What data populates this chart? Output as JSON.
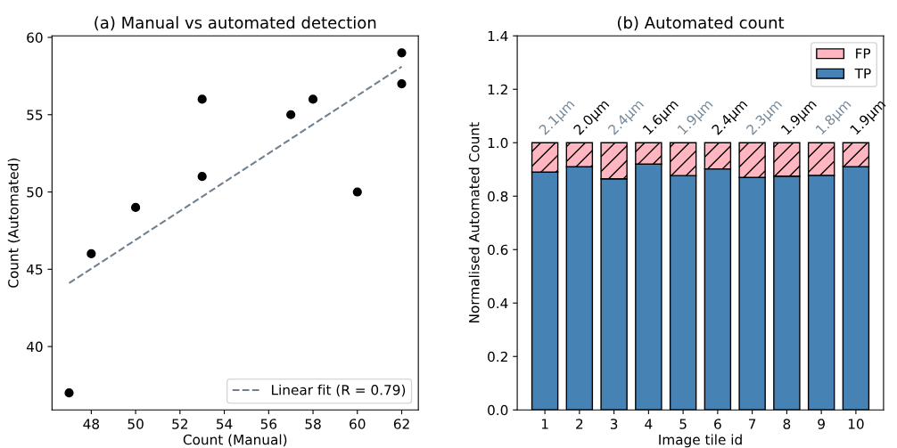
{
  "chart_data": [
    {
      "type": "scatter",
      "title": "(a) Manual vs automated detection",
      "xlabel": "Count (Manual)",
      "ylabel": "Count (Automated)",
      "xlim": [
        46.23,
        62.75
      ],
      "ylim": [
        35.9,
        60.1
      ],
      "xticks": [
        48,
        50,
        52,
        54,
        56,
        58,
        60,
        62
      ],
      "yticks": [
        40,
        45,
        50,
        55,
        60
      ],
      "legend": "bottom right",
      "grid": false,
      "series": [
        {
          "type": "scatter",
          "color": "#000000",
          "marker": "circle",
          "x": [
            47,
            48,
            50,
            53,
            53,
            57,
            58,
            60,
            62,
            62
          ],
          "values": [
            37,
            46,
            49,
            56,
            51,
            55,
            56,
            50,
            59,
            57
          ]
        },
        {
          "type": "line",
          "name": "Linear fit (R = 0.79)",
          "color": "#708090",
          "line_style": "dashed",
          "marker": "none",
          "x": [
            47,
            62
          ],
          "values": [
            44.1,
            58.1
          ]
        }
      ]
    },
    {
      "type": "bar",
      "stacked": true,
      "title": "(b) Automated count",
      "xlabel": "Image tile id",
      "ylabel": "Normalised Automated Count",
      "categories": [
        "1",
        "2",
        "3",
        "4",
        "5",
        "6",
        "7",
        "8",
        "9",
        "10"
      ],
      "ylim": [
        0,
        1.4
      ],
      "yticks": [
        {
          "value": 0,
          "label": "0.0"
        },
        {
          "value": 0.2,
          "label": "0.2"
        },
        {
          "value": 0.4,
          "label": "0.4"
        },
        {
          "value": 0.6,
          "label": "0.6"
        },
        {
          "value": 0.8,
          "label": "0.8"
        },
        {
          "value": 1.0,
          "label": "1.0"
        },
        {
          "value": 1.2,
          "label": "1.2"
        },
        {
          "value": 1.4,
          "label": "1.4"
        }
      ],
      "legend": "top right",
      "grid": false,
      "series": [
        {
          "name": "TP",
          "color": "#4682b4",
          "values": [
            0.89,
            0.91,
            0.865,
            0.92,
            0.877,
            0.902,
            0.87,
            0.875,
            0.878,
            0.91
          ]
        },
        {
          "name": "FP",
          "color": "#ffb6c1",
          "values": [
            0.11,
            0.09,
            0.135,
            0.08,
            0.123,
            0.098,
            0.13,
            0.125,
            0.122,
            0.09
          ]
        }
      ],
      "annotations": [
        {
          "text": "2.1µm",
          "x": "1",
          "y": 1.0
        },
        {
          "text": "2.0µm",
          "x": "2",
          "y": 1.0
        },
        {
          "text": "2.4µm",
          "x": "3",
          "y": 1.0
        },
        {
          "text": "1.6µm",
          "x": "4",
          "y": 1.0
        },
        {
          "text": "1.9µm",
          "x": "5",
          "y": 1.0
        },
        {
          "text": "2.4µm",
          "x": "6",
          "y": 1.0
        },
        {
          "text": "2.3µm",
          "x": "7",
          "y": 1.0
        },
        {
          "text": "1.9µm",
          "x": "8",
          "y": 1.0
        },
        {
          "text": "1.8µm",
          "x": "9",
          "y": 1.0
        },
        {
          "text": "1.9µm",
          "x": "10",
          "y": 1.0
        }
      ]
    }
  ]
}
